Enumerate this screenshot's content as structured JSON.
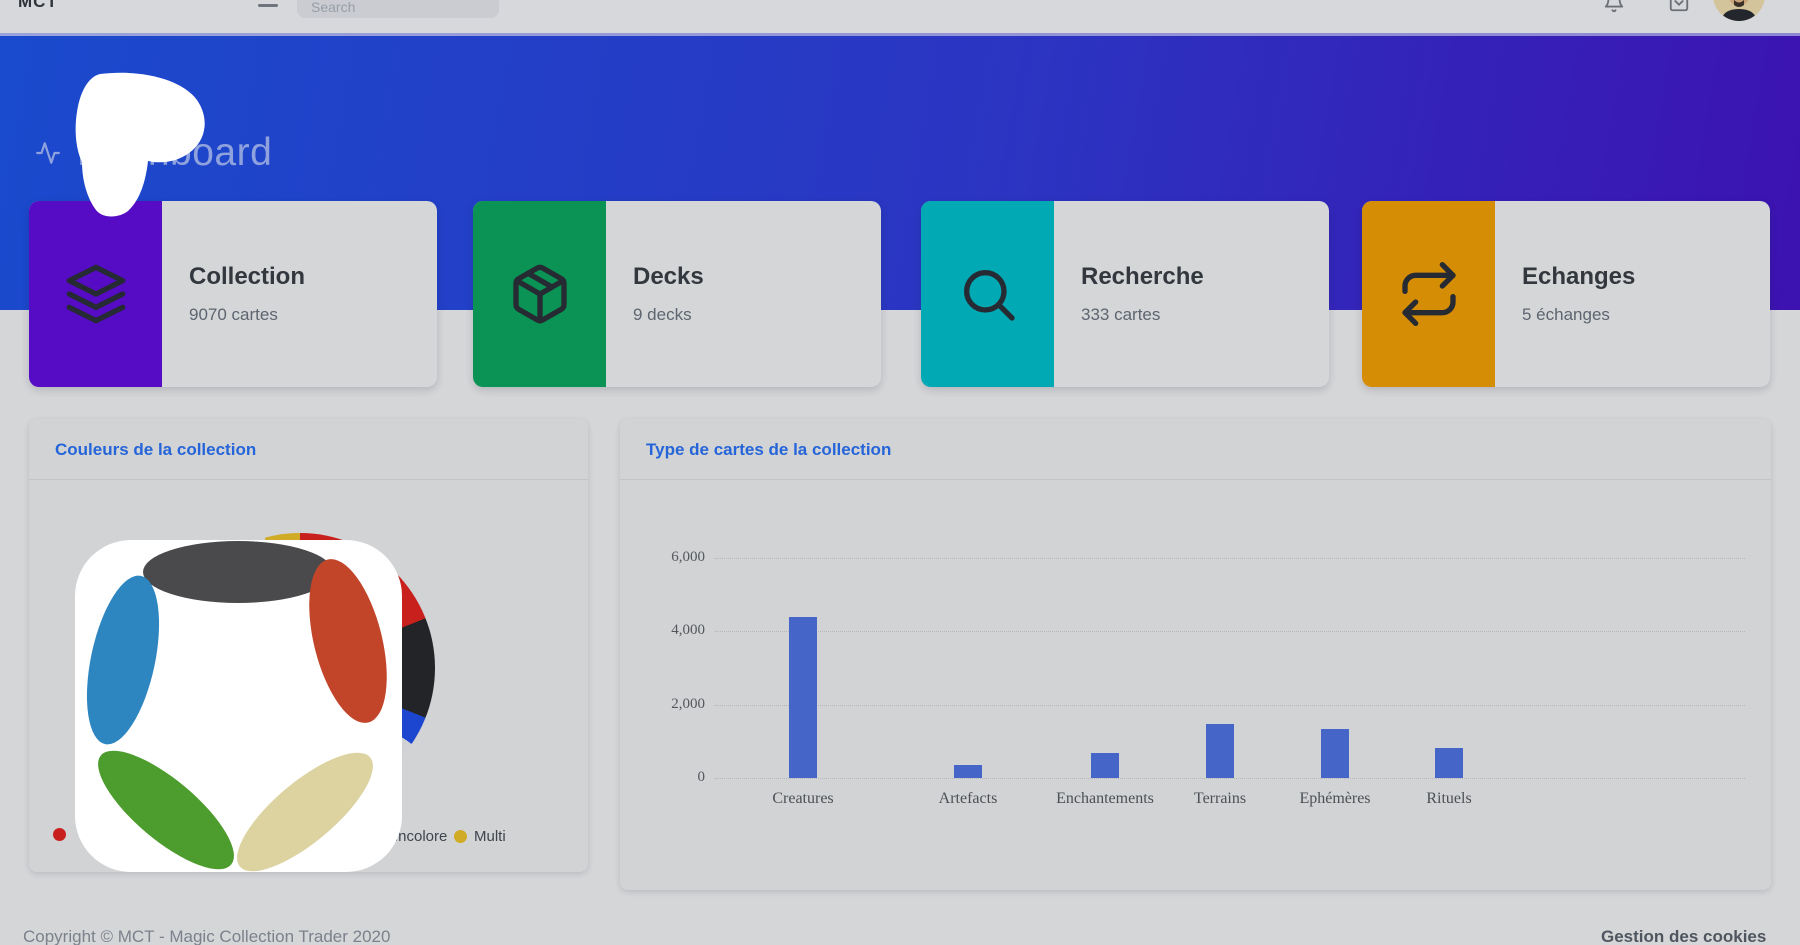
{
  "topbar": {
    "brand": "MCT",
    "search_placeholder": "Search"
  },
  "header": {
    "title": "Dashboard"
  },
  "stat_cards": [
    {
      "title": "Collection",
      "subtitle": "9070 cartes",
      "icon": "layers-icon",
      "color": "#560bc4"
    },
    {
      "title": "Decks",
      "subtitle": "9 decks",
      "icon": "package-icon",
      "color": "#0b9355"
    },
    {
      "title": "Recherche",
      "subtitle": "333 cartes",
      "icon": "search-icon",
      "color": "#00a9b4"
    },
    {
      "title": "Echanges",
      "subtitle": "5 échanges",
      "icon": "repeat-icon",
      "color": "#d68d06"
    }
  ],
  "panels": {
    "colors": {
      "title": "Couleurs de la collection",
      "legend": [
        {
          "label": "",
          "color": "#c8201d"
        },
        {
          "label": "Incolore",
          "color": "#b9bcc0"
        },
        {
          "label": "Multi",
          "color": "#d0ab25"
        }
      ]
    },
    "types": {
      "title": "Type de cartes de la collection"
    }
  },
  "chart_data": [
    {
      "type": "pie",
      "title": "Couleurs de la collection",
      "note": "pie mostly hidden behind a white logo overlay; only right/top arc slivers visible",
      "segments": [
        {
          "color": "#c8201d",
          "pct": 19.0
        },
        {
          "color": "#222428",
          "pct": 12.0
        },
        {
          "color": "#1c45d0",
          "pct": 3.5
        },
        {
          "color": "#d0d1d4",
          "pct": 61.3,
          "covered": true
        },
        {
          "color": "#d0ab25",
          "pct": 4.2
        }
      ],
      "legend_visible": [
        "Incolore",
        "Multi"
      ]
    },
    {
      "type": "bar",
      "title": "Type de cartes de la collection",
      "categories": [
        "Creatures",
        "Artefacts",
        "Enchantements",
        "Terrains",
        "Ephémères",
        "Rituels"
      ],
      "values": [
        4400,
        350,
        670,
        1460,
        1340,
        810
      ],
      "bar_color": "#4565c8",
      "ylim": [
        0,
        6000
      ],
      "yticks": [
        {
          "label": "0",
          "value": 0
        },
        {
          "label": "2,000",
          "value": 2000
        },
        {
          "label": "4,000",
          "value": 4000
        },
        {
          "label": "6,000",
          "value": 6000
        }
      ],
      "grid": "dotted horizontal"
    }
  ],
  "footer": {
    "copyright": "Copyright © MCT - Magic Collection Trader 2020",
    "cookies": "Gestion des cookies"
  }
}
